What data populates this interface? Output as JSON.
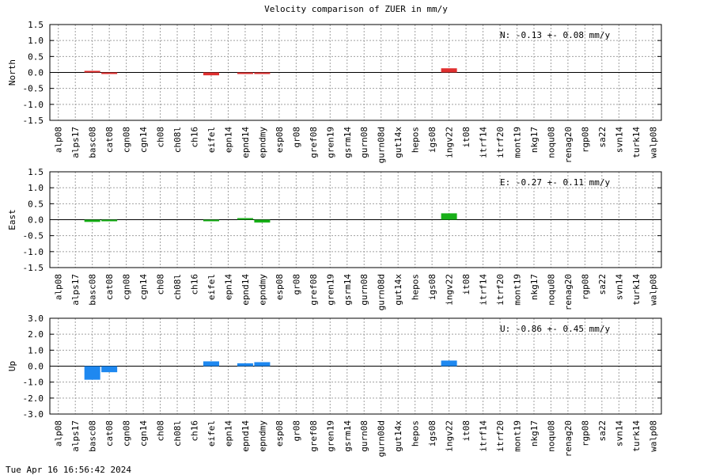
{
  "chart_data": {
    "type": "bar",
    "title": "Velocity comparison of ZUER in mm/y",
    "categories": [
      "alp08",
      "alps17",
      "basc08",
      "cat08",
      "cgn08",
      "cgn14",
      "ch08",
      "ch08l",
      "ch16",
      "eifel",
      "epn14",
      "epnd14",
      "epndmy",
      "esp08",
      "gr08",
      "gref08",
      "gren19",
      "gsrm14",
      "gurn08",
      "gurn08d",
      "gut14x",
      "hepos",
      "igs08",
      "ingv22",
      "it08",
      "itrf14",
      "itrf20",
      "mont19",
      "nkg17",
      "noqu08",
      "renag20",
      "rgp08",
      "sa22",
      "svn14",
      "turk14",
      "walp08"
    ],
    "grid": true,
    "panels": [
      {
        "ylabel": "North",
        "ylim": [
          -1.5,
          1.5
        ],
        "yticks": [
          "-1.5",
          "-1.0",
          "-0.5",
          "0.0",
          "0.5",
          "1.0",
          "1.5"
        ],
        "color": "#e03030",
        "summary": "N:  -0.13 +-  0.08 mm/y",
        "series": [
          {
            "values": [
              null,
              null,
              0.02,
              -0.04,
              null,
              null,
              null,
              null,
              null,
              -0.09,
              null,
              -0.03,
              -0.02,
              null,
              null,
              null,
              null,
              null,
              null,
              null,
              null,
              null,
              null,
              0.13,
              null,
              null,
              null,
              null,
              null,
              null,
              null,
              null,
              null,
              null,
              null,
              null
            ]
          }
        ]
      },
      {
        "ylabel": "East",
        "ylim": [
          -1.5,
          1.5
        ],
        "yticks": [
          "-1.5",
          "-1.0",
          "-0.5",
          "0.0",
          "0.5",
          "1.0",
          "1.5"
        ],
        "color": "#18b018",
        "summary": "E:  -0.27 +-  0.11 mm/y",
        "series": [
          {
            "values": [
              null,
              null,
              -0.07,
              -0.05,
              null,
              null,
              null,
              null,
              null,
              -0.02,
              null,
              0.02,
              -0.09,
              null,
              null,
              null,
              null,
              null,
              null,
              null,
              null,
              null,
              null,
              0.2,
              null,
              null,
              null,
              null,
              null,
              null,
              null,
              null,
              null,
              null,
              null,
              null
            ]
          }
        ]
      },
      {
        "ylabel": "Up",
        "ylim": [
          -3.0,
          3.0
        ],
        "yticks": [
          "-3.0",
          "-2.0",
          "-1.0",
          "0.0",
          "1.0",
          "2.0",
          "3.0"
        ],
        "color": "#1e88f0",
        "summary": "U:  -0.86 +-  0.45 mm/y",
        "series": [
          {
            "values": [
              null,
              null,
              -0.85,
              -0.38,
              null,
              null,
              null,
              null,
              null,
              0.3,
              null,
              0.18,
              0.25,
              null,
              null,
              null,
              null,
              null,
              null,
              null,
              null,
              null,
              null,
              0.35,
              null,
              null,
              null,
              null,
              null,
              null,
              null,
              null,
              null,
              null,
              null,
              null
            ]
          }
        ]
      }
    ]
  },
  "timestamp": "Tue Apr 16 16:56:42 2024"
}
